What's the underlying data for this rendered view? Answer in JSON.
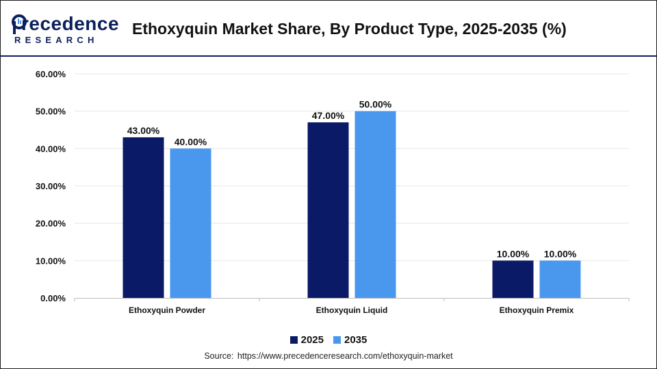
{
  "header": {
    "logo_word": "recedence",
    "logo_sub": "RESEARCH",
    "title": "Ethoxyquin Market Share, By Product Type, 2025-2035 (%)"
  },
  "colors": {
    "series_2025": "#0b1a66",
    "series_2035": "#4a97ee",
    "brand": "#0b1f5c",
    "grid": "#e6e6e6"
  },
  "chart_data": {
    "type": "bar",
    "title": "Ethoxyquin Market Share, By Product Type, 2025-2035 (%)",
    "xlabel": "",
    "ylabel": "",
    "categories": [
      "Ethoxyquin Powder",
      "Ethoxyquin Liquid",
      "Ethoxyquin Premix"
    ],
    "series": [
      {
        "name": "2025",
        "values": [
          43.0,
          47.0,
          10.0
        ],
        "labels": [
          "43.00%",
          "47.00%",
          "10.00%"
        ]
      },
      {
        "name": "2035",
        "values": [
          40.0,
          50.0,
          10.0
        ],
        "labels": [
          "40.00%",
          "50.00%",
          "10.00%"
        ]
      }
    ],
    "ylim": [
      0,
      60
    ],
    "yticks": [
      0,
      10,
      20,
      30,
      40,
      50,
      60
    ],
    "ytick_labels": [
      "0.00%",
      "10.00%",
      "20.00%",
      "30.00%",
      "40.00%",
      "50.00%",
      "60.00%"
    ],
    "grid": true,
    "legend_position": "bottom-center"
  },
  "legend": {
    "items": [
      {
        "label": "2025"
      },
      {
        "label": "2035"
      }
    ]
  },
  "source": {
    "prefix": "Source:",
    "url": "https://www.precedenceresearch.com/ethoxyquin-market"
  }
}
